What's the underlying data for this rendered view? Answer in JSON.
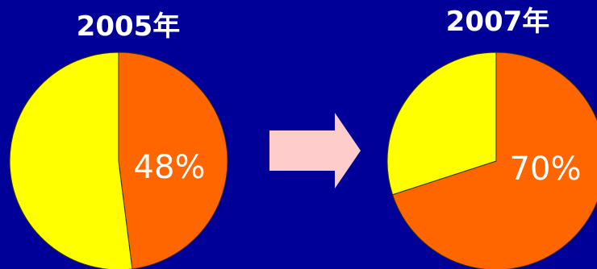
{
  "colors": {
    "background": "#000099",
    "share": "#ff6600",
    "rest": "#ffff00",
    "arrow": "#ffcccc",
    "label": "#ffffff"
  },
  "chart_data": [
    {
      "type": "pie",
      "title": "2005年",
      "slices": [
        {
          "label": "48%",
          "value": 48,
          "color": "#ff6600"
        },
        {
          "label": "",
          "value": 52,
          "color": "#ffff00"
        }
      ]
    },
    {
      "type": "pie",
      "title": "2007年",
      "slices": [
        {
          "label": "70%",
          "value": 70,
          "color": "#ff6600"
        },
        {
          "label": "",
          "value": 30,
          "color": "#ffff00"
        }
      ]
    }
  ],
  "transition": {
    "icon": "right-arrow-icon"
  }
}
